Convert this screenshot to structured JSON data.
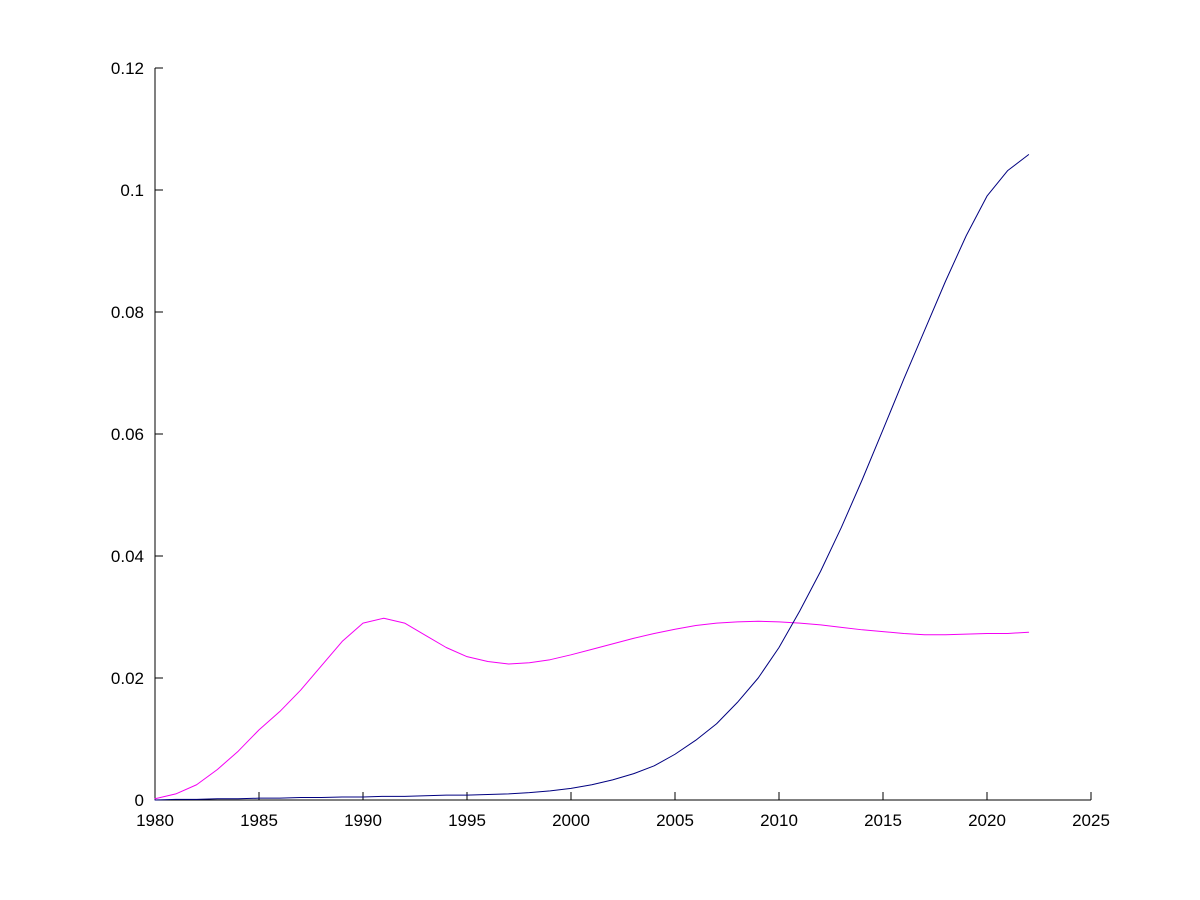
{
  "figure": {
    "title": "",
    "background_color": "#ffffff"
  },
  "chart_data": {
    "type": "line",
    "title": "",
    "xlabel": "",
    "ylabel": "",
    "grid": false,
    "legend": "none",
    "box": "off",
    "axis_color": "#000000",
    "xlim": [
      1980,
      2025
    ],
    "ylim": [
      0,
      0.12
    ],
    "x_ticks": [
      {
        "value": 1980,
        "label": "1980"
      },
      {
        "value": 1985,
        "label": "1985"
      },
      {
        "value": 1990,
        "label": "1990"
      },
      {
        "value": 1995,
        "label": "1995"
      },
      {
        "value": 2000,
        "label": "2000"
      },
      {
        "value": 2005,
        "label": "2005"
      },
      {
        "value": 2010,
        "label": "2010"
      },
      {
        "value": 2015,
        "label": "2015"
      },
      {
        "value": 2020,
        "label": "2020"
      },
      {
        "value": 2025,
        "label": "2025"
      }
    ],
    "y_ticks": [
      {
        "value": 0,
        "label": "0"
      },
      {
        "value": 0.02,
        "label": "0.02"
      },
      {
        "value": 0.04,
        "label": "0.04"
      },
      {
        "value": 0.06,
        "label": "0.06"
      },
      {
        "value": 0.08,
        "label": "0.08"
      },
      {
        "value": 0.1,
        "label": "0.1"
      },
      {
        "value": 0.12,
        "label": "0.12"
      }
    ],
    "x": [
      1980,
      1981,
      1982,
      1983,
      1984,
      1985,
      1986,
      1987,
      1988,
      1989,
      1990,
      1991,
      1992,
      1993,
      1994,
      1995,
      1996,
      1997,
      1998,
      1999,
      2000,
      2001,
      2002,
      2003,
      2004,
      2005,
      2006,
      2007,
      2008,
      2009,
      2010,
      2011,
      2012,
      2013,
      2014,
      2015,
      2016,
      2017,
      2018,
      2019,
      2020,
      2021,
      2022
    ],
    "series": [
      {
        "name": "magenta-line",
        "color": "#f400f4",
        "values": [
          0.0002,
          0.001,
          0.0025,
          0.005,
          0.008,
          0.0115,
          0.0145,
          0.018,
          0.022,
          0.026,
          0.029,
          0.0298,
          0.029,
          0.027,
          0.025,
          0.0235,
          0.0227,
          0.0223,
          0.0225,
          0.023,
          0.0238,
          0.0247,
          0.0256,
          0.0265,
          0.0273,
          0.028,
          0.0286,
          0.029,
          0.0292,
          0.0293,
          0.0292,
          0.029,
          0.0287,
          0.0283,
          0.0279,
          0.0276,
          0.0273,
          0.0271,
          0.0271,
          0.0272,
          0.0273,
          0.0273,
          0.0275
        ]
      },
      {
        "name": "dark-blue-line",
        "color": "#000080",
        "values": [
          0.0,
          0.0001,
          0.0001,
          0.0002,
          0.0002,
          0.0003,
          0.0003,
          0.0004,
          0.0004,
          0.0005,
          0.0005,
          0.0006,
          0.0006,
          0.0007,
          0.0008,
          0.0008,
          0.0009,
          0.001,
          0.0012,
          0.0015,
          0.0019,
          0.0025,
          0.0033,
          0.0043,
          0.0056,
          0.0075,
          0.0098,
          0.0125,
          0.016,
          0.02,
          0.025,
          0.031,
          0.0375,
          0.0447,
          0.0525,
          0.0607,
          0.069,
          0.077,
          0.085,
          0.0925,
          0.099,
          0.1032,
          0.1058
        ]
      }
    ]
  }
}
